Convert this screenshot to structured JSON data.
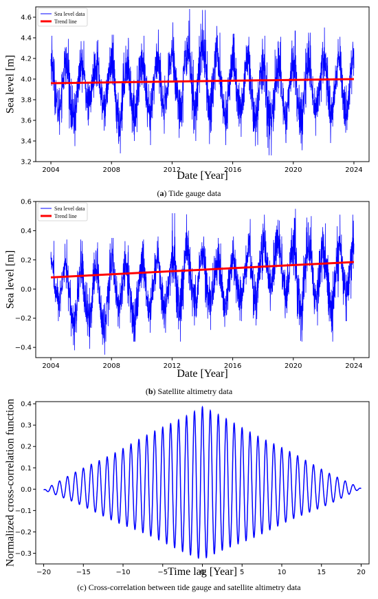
{
  "panels": [
    {
      "id": "a",
      "caption_letter": "(a)",
      "caption_text": " Tide gauge data",
      "chart_data": {
        "type": "line",
        "xlabel": "Date [Year]",
        "ylabel": "Sea level [m]",
        "xlim": [
          2003.0,
          2025.0
        ],
        "ylim": [
          3.2,
          4.7
        ],
        "xticks": [
          2004,
          2008,
          2012,
          2016,
          2020,
          2024
        ],
        "yticks": [
          3.2,
          3.4,
          3.6,
          3.8,
          4.0,
          4.2,
          4.4,
          4.6
        ],
        "ytick_decimals": 1,
        "legend": [
          "Sea level data",
          "Trend line"
        ],
        "legend_position": "top-left",
        "series": [
          {
            "name": "Sea level data",
            "color": "#0000ff",
            "x_start": 2004.0,
            "x_end": 2024.0,
            "annual_peaks": [
              4.42,
              4.39,
              4.37,
              4.38,
              4.43,
              4.4,
              4.42,
              4.48,
              4.55,
              4.68,
              4.67,
              4.45,
              4.44,
              4.41,
              4.42,
              4.41,
              4.47,
              4.45,
              4.5,
              4.41
            ],
            "annual_troughs": [
              3.46,
              3.35,
              3.55,
              3.5,
              3.28,
              3.4,
              3.36,
              3.47,
              3.43,
              3.4,
              3.37,
              3.36,
              3.44,
              3.35,
              3.26,
              3.38,
              3.31,
              3.45,
              3.38,
              3.48
            ]
          },
          {
            "name": "Trend line",
            "color": "#ff0000",
            "x": [
              2004.0,
              2024.0
            ],
            "y": [
              3.96,
              4.0
            ]
          }
        ]
      }
    },
    {
      "id": "b",
      "caption_letter": "(b)",
      "caption_text": " Satellite altimetry data",
      "chart_data": {
        "type": "line",
        "xlabel": "Date [Year]",
        "ylabel": "Sea level [m]",
        "xlim": [
          2003.0,
          2025.0
        ],
        "ylim": [
          -0.47,
          0.6
        ],
        "xticks": [
          2004,
          2008,
          2012,
          2016,
          2020,
          2024
        ],
        "yticks": [
          -0.4,
          -0.2,
          0.0,
          0.2,
          0.4,
          0.6
        ],
        "ytick_decimals": 1,
        "legend": [
          "Sea level data",
          "Trend line"
        ],
        "legend_position": "top-left",
        "series": [
          {
            "name": "Sea level data",
            "color": "#0000ff",
            "x_start": 2004.0,
            "x_end": 2024.0,
            "annual_peaks": [
              0.33,
              0.34,
              0.33,
              0.32,
              0.35,
              0.3,
              0.34,
              0.36,
              0.52,
              0.4,
              0.36,
              0.35,
              0.36,
              0.48,
              0.51,
              0.47,
              0.55,
              0.5,
              0.45,
              0.51
            ],
            "annual_troughs": [
              -0.22,
              -0.42,
              -0.41,
              -0.45,
              -0.27,
              -0.36,
              -0.3,
              -0.3,
              -0.36,
              -0.25,
              -0.28,
              -0.26,
              -0.22,
              -0.25,
              -0.15,
              -0.2,
              -0.36,
              -0.25,
              -0.36,
              -0.22
            ]
          },
          {
            "name": "Trend line",
            "color": "#ff0000",
            "x": [
              2004.0,
              2024.0
            ],
            "y": [
              0.08,
              0.185
            ]
          }
        ]
      }
    },
    {
      "id": "c",
      "caption_letter": "",
      "caption_text": "(c) Cross-correlation between tide gauge and satellite altimetry data",
      "chart_data": {
        "type": "line",
        "xlabel": "Time lag [Year]",
        "ylabel": "Normalized cross-correlation function",
        "xlim": [
          -21.0,
          21.0
        ],
        "ylim": [
          -0.35,
          0.41
        ],
        "xticks": [
          -20,
          -15,
          -10,
          -5,
          0,
          5,
          10,
          15,
          20
        ],
        "yticks": [
          -0.3,
          -0.2,
          -0.1,
          0.0,
          0.1,
          0.2,
          0.3,
          0.4
        ],
        "ytick_decimals": 1,
        "series": [
          {
            "name": "",
            "color": "#0000ff",
            "x_start": -20.0,
            "x_end": 20.0,
            "period_years": 1.0,
            "peak_at_zero_lag": 0.385,
            "trough_near_zero_lag": -0.33,
            "envelope": "triangular, decaying linearly to 0 at lag ±20"
          }
        ]
      }
    }
  ]
}
